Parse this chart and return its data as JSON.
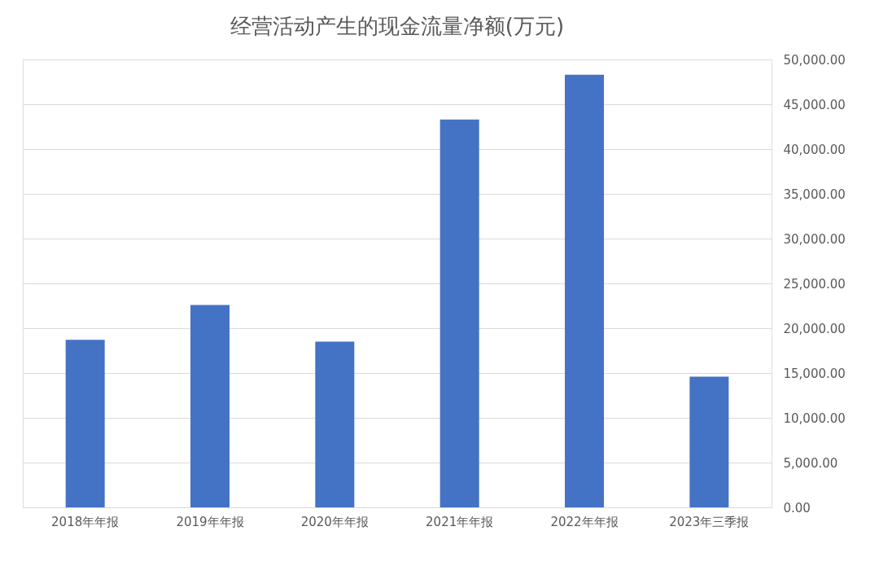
{
  "chart_data": {
    "type": "bar",
    "title": "经营活动产生的现金流量净额(万元)",
    "categories": [
      "2018年年报",
      "2019年年报",
      "2020年年报",
      "2021年年报",
      "2022年年报",
      "2023年三季报"
    ],
    "values": [
      18700,
      22600,
      18500,
      43300,
      48300,
      14600
    ],
    "color": "#4472c4",
    "ylim": [
      0,
      50000
    ],
    "yticks": [
      {
        "value": 0,
        "label": "0.00"
      },
      {
        "value": 5000,
        "label": "5,000.00"
      },
      {
        "value": 10000,
        "label": "10,000.00"
      },
      {
        "value": 15000,
        "label": "15,000.00"
      },
      {
        "value": 20000,
        "label": "20,000.00"
      },
      {
        "value": 25000,
        "label": "25,000.00"
      },
      {
        "value": 30000,
        "label": "30,000.00"
      },
      {
        "value": 35000,
        "label": "35,000.00"
      },
      {
        "value": 40000,
        "label": "40,000.00"
      },
      {
        "value": 45000,
        "label": "45,000.00"
      },
      {
        "value": 50000,
        "label": "50,000.00"
      }
    ],
    "grid": "y"
  }
}
